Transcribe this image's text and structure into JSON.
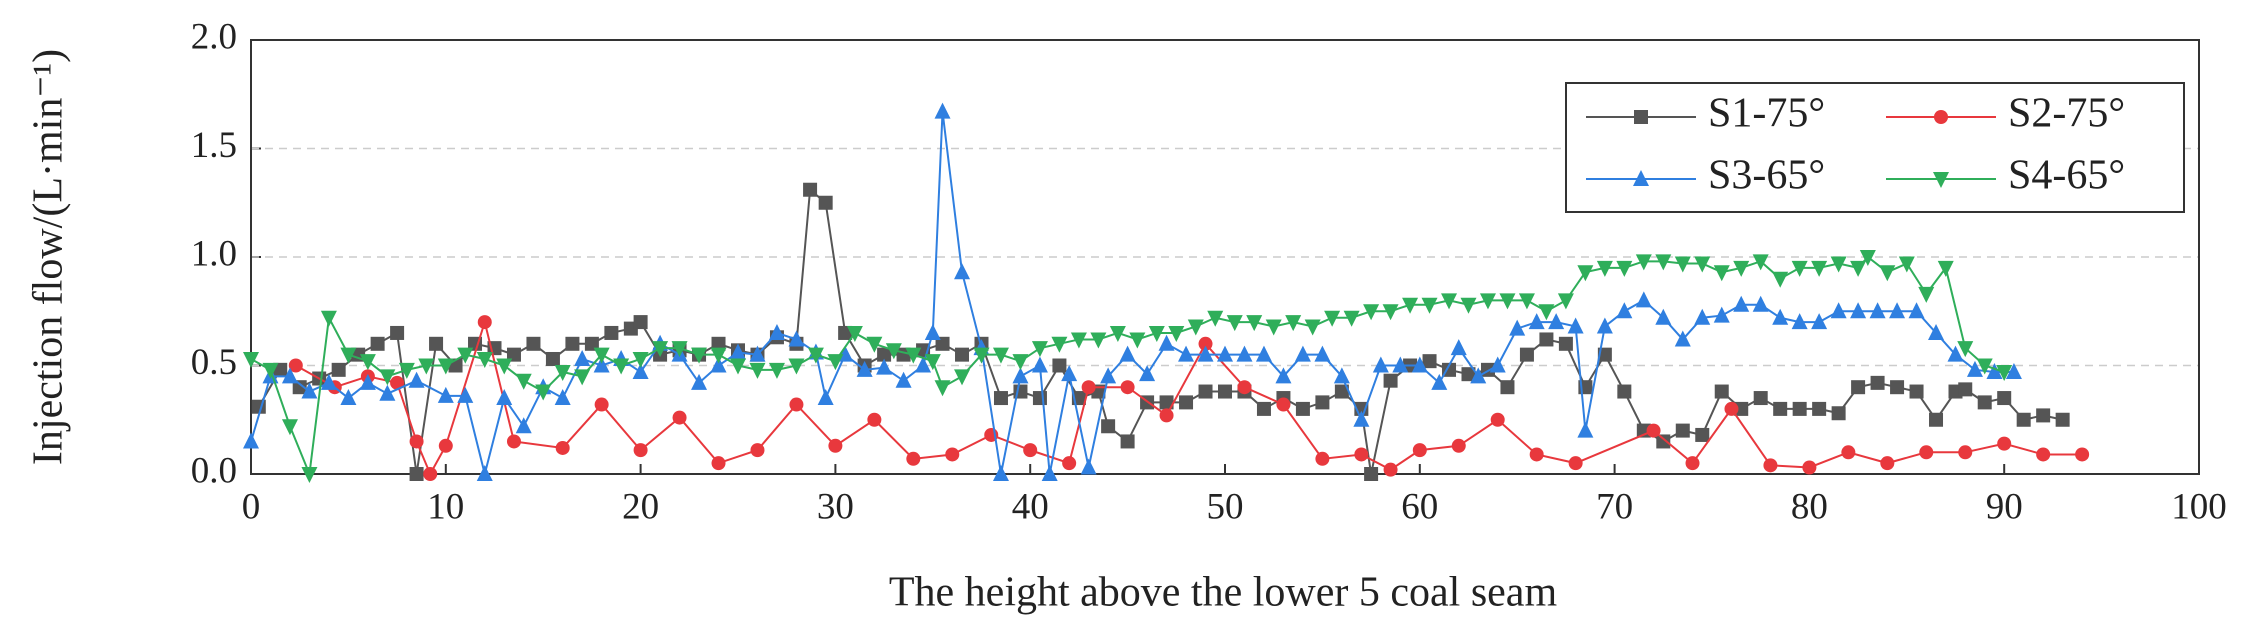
{
  "chart_data": {
    "type": "line",
    "xlabel": "The height above the lower 5 coal seam",
    "ylabel": "Injection flow/(L·min⁻¹)",
    "xlim": [
      0,
      100
    ],
    "ylim": [
      0,
      2
    ],
    "xticks": [
      0,
      10,
      20,
      30,
      40,
      50,
      60,
      70,
      80,
      90,
      100
    ],
    "yticks": [
      {
        "value": 0,
        "label": "0.0"
      },
      {
        "value": 0.5,
        "label": "0.5"
      },
      {
        "value": 1,
        "label": "1.0"
      },
      {
        "value": 1.5,
        "label": "1.5"
      },
      {
        "value": 2,
        "label": "2.0"
      }
    ],
    "grid": true,
    "legend": "upper right",
    "series": [
      {
        "name": "S1-75°",
        "color": "#555555",
        "marker": "square",
        "x": [
          0.4,
          1.5,
          2.5,
          3.5,
          4.5,
          5.5,
          6.5,
          7.5,
          8.5,
          9.5,
          10.5,
          11.5,
          12.5,
          13.5,
          14.5,
          15.5,
          16.5,
          17.5,
          18.5,
          19.5,
          20,
          21,
          22,
          23,
          24,
          25,
          26,
          27,
          28,
          28.7,
          29.5,
          30.5,
          31.5,
          32.5,
          33.5,
          34.5,
          35.5,
          36.5,
          37.5,
          38.5,
          39.5,
          40.5,
          41.5,
          42.5,
          43.5,
          44,
          45,
          46,
          47,
          48,
          49,
          50,
          51,
          52,
          53,
          54,
          55,
          56,
          57,
          57.5,
          58.5,
          59.5,
          60.5,
          61.5,
          62.5,
          63.5,
          64.5,
          65.5,
          66.5,
          67.5,
          68.5,
          69.5,
          70.5,
          71.5,
          72.5,
          73.5,
          74.5,
          75.5,
          76.5,
          77.5,
          78.5,
          79.5,
          80.5,
          81.5,
          82.5,
          83.5,
          84.5,
          85.5,
          86.5,
          87.5,
          88,
          89,
          90,
          91,
          92,
          93
        ],
        "values": [
          0.31,
          0.48,
          0.4,
          0.44,
          0.48,
          0.55,
          0.6,
          0.65,
          0,
          0.6,
          0.5,
          0.6,
          0.58,
          0.55,
          0.6,
          0.53,
          0.6,
          0.6,
          0.65,
          0.67,
          0.7,
          0.55,
          0.57,
          0.55,
          0.6,
          0.57,
          0.55,
          0.63,
          0.6,
          1.31,
          1.25,
          0.65,
          0.5,
          0.55,
          0.55,
          0.57,
          0.6,
          0.55,
          0.6,
          0.35,
          0.38,
          0.35,
          0.5,
          0.35,
          0.38,
          0.22,
          0.15,
          0.33,
          0.33,
          0.33,
          0.38,
          0.38,
          0.38,
          0.3,
          0.35,
          0.3,
          0.33,
          0.38,
          0.3,
          0,
          0.43,
          0.5,
          0.52,
          0.48,
          0.46,
          0.48,
          0.4,
          0.55,
          0.62,
          0.6,
          0.4,
          0.55,
          0.38,
          0.2,
          0.15,
          0.2,
          0.18,
          0.38,
          0.3,
          0.35,
          0.3,
          0.3,
          0.3,
          0.28,
          0.4,
          0.42,
          0.4,
          0.38,
          0.25,
          0.38,
          0.39,
          0.33,
          0.35,
          0.25,
          0.27,
          0.25
        ]
      },
      {
        "name": "S2-75°",
        "color": "#e8383d",
        "marker": "circle",
        "x": [
          2.3,
          4.3,
          6,
          7.5,
          8.5,
          9.2,
          10,
          12,
          13.5,
          16,
          18,
          20,
          22,
          24,
          26,
          28,
          30,
          32,
          34,
          36,
          38,
          40,
          42,
          43,
          45,
          47,
          49,
          51,
          53,
          55,
          57,
          58.5,
          60,
          62,
          64,
          66,
          68,
          72,
          74,
          76,
          78,
          80,
          82,
          84,
          86,
          88,
          90,
          92,
          94
        ],
        "values": [
          0.5,
          0.4,
          0.45,
          0.42,
          0.15,
          0,
          0.13,
          0.7,
          0.15,
          0.12,
          0.32,
          0.11,
          0.26,
          0.05,
          0.11,
          0.32,
          0.13,
          0.25,
          0.07,
          0.09,
          0.18,
          0.11,
          0.05,
          0.4,
          0.4,
          0.27,
          0.6,
          0.4,
          0.32,
          0.07,
          0.09,
          0.02,
          0.11,
          0.13,
          0.25,
          0.09,
          0.05,
          0.2,
          0.05,
          0.3,
          0.04,
          0.03,
          0.1,
          0.05,
          0.1,
          0.1,
          0.14,
          0.09,
          0.09
        ]
      },
      {
        "name": "S3-65°",
        "color": "#2f7fe0",
        "marker": "triangle-up",
        "x": [
          0,
          1,
          2,
          3,
          4,
          5,
          6,
          7,
          8.5,
          10,
          11,
          12,
          13,
          14,
          15,
          16,
          17,
          18,
          19,
          20,
          21,
          22,
          23,
          24,
          25,
          26,
          27,
          28,
          29,
          29.5,
          30.5,
          31.5,
          32.5,
          33.5,
          34.5,
          35,
          35.5,
          36.5,
          37.5,
          38.5,
          39.5,
          40.5,
          41,
          42,
          43,
          44,
          45,
          46,
          47,
          48,
          49,
          50,
          51,
          52,
          53,
          54,
          55,
          56,
          57,
          58,
          59,
          60,
          61,
          62,
          63,
          64,
          65,
          66,
          67,
          68,
          68.5,
          69.5,
          70.5,
          71.5,
          72.5,
          73.5,
          74.5,
          75.5,
          76.5,
          77.5,
          78.5,
          79.5,
          80.5,
          81.5,
          82.5,
          83.5,
          84.5,
          85.5,
          86.5,
          87.5,
          88.5,
          89.5,
          90.5
        ],
        "values": [
          0.15,
          0.45,
          0.45,
          0.38,
          0.42,
          0.35,
          0.42,
          0.37,
          0.43,
          0.36,
          0.36,
          0,
          0.35,
          0.22,
          0.4,
          0.35,
          0.53,
          0.5,
          0.53,
          0.47,
          0.6,
          0.55,
          0.42,
          0.5,
          0.56,
          0.55,
          0.65,
          0.62,
          0.56,
          0.35,
          0.55,
          0.48,
          0.49,
          0.43,
          0.5,
          0.65,
          1.67,
          0.93,
          0.58,
          0,
          0.45,
          0.5,
          0,
          0.46,
          0.03,
          0.45,
          0.55,
          0.46,
          0.6,
          0.55,
          0.55,
          0.55,
          0.55,
          0.55,
          0.45,
          0.55,
          0.55,
          0.45,
          0.25,
          0.5,
          0.5,
          0.5,
          0.42,
          0.58,
          0.45,
          0.5,
          0.67,
          0.7,
          0.7,
          0.68,
          0.2,
          0.68,
          0.75,
          0.8,
          0.72,
          0.62,
          0.72,
          0.73,
          0.78,
          0.78,
          0.72,
          0.7,
          0.7,
          0.75,
          0.75,
          0.75,
          0.75,
          0.75,
          0.65,
          0.55,
          0.48,
          0.47,
          0.47
        ]
      },
      {
        "name": "S4-65°",
        "color": "#2fae5a",
        "marker": "triangle-down",
        "x": [
          0,
          1,
          2,
          3,
          4,
          5,
          6,
          7,
          8,
          9,
          10,
          11,
          12,
          13,
          14,
          15,
          16,
          17,
          18,
          19,
          20,
          21,
          22,
          23,
          24,
          25,
          26,
          27,
          28,
          29,
          30,
          31,
          32,
          33,
          34,
          35,
          35.5,
          36.5,
          37.5,
          38.5,
          39.5,
          40.5,
          41.5,
          42.5,
          43.5,
          44.5,
          45.5,
          46.5,
          47.5,
          48.5,
          49.5,
          50.5,
          51.5,
          52.5,
          53.5,
          54.5,
          55.5,
          56.5,
          57.5,
          58.5,
          59.5,
          60.5,
          61.5,
          62.5,
          63.5,
          64.5,
          65.5,
          66.5,
          67.5,
          68.5,
          69.5,
          70.5,
          71.5,
          72.5,
          73.5,
          74.5,
          75.5,
          76.5,
          77.5,
          78.5,
          79.5,
          80.5,
          81.5,
          82.5,
          83,
          84,
          85,
          86,
          87,
          88,
          89,
          90
        ],
        "values": [
          0.53,
          0.48,
          0.22,
          0,
          0.72,
          0.55,
          0.52,
          0.45,
          0.48,
          0.5,
          0.5,
          0.55,
          0.53,
          0.5,
          0.43,
          0.38,
          0.47,
          0.45,
          0.55,
          0.5,
          0.53,
          0.58,
          0.58,
          0.55,
          0.55,
          0.5,
          0.48,
          0.48,
          0.5,
          0.55,
          0.52,
          0.65,
          0.6,
          0.57,
          0.55,
          0.52,
          0.4,
          0.45,
          0.55,
          0.55,
          0.52,
          0.58,
          0.6,
          0.62,
          0.62,
          0.65,
          0.62,
          0.65,
          0.65,
          0.68,
          0.72,
          0.7,
          0.7,
          0.68,
          0.7,
          0.68,
          0.72,
          0.72,
          0.75,
          0.75,
          0.78,
          0.78,
          0.8,
          0.78,
          0.8,
          0.8,
          0.8,
          0.75,
          0.8,
          0.93,
          0.95,
          0.95,
          0.98,
          0.98,
          0.97,
          0.97,
          0.93,
          0.95,
          0.98,
          0.9,
          0.95,
          0.95,
          0.97,
          0.95,
          1,
          0.93,
          0.97,
          0.83,
          0.95,
          0.58,
          0.5,
          0.47
        ]
      }
    ]
  }
}
